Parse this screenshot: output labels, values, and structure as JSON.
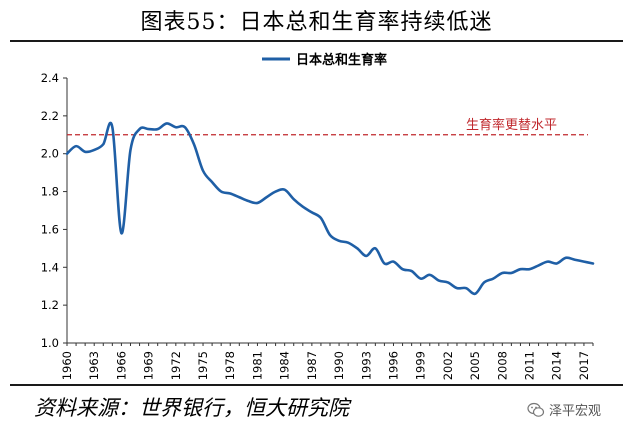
{
  "page": {
    "title": "图表55：日本总和生育率持续低迷",
    "source": "资料来源：世界银行，恒大研究院",
    "watermark": "泽平宏观",
    "watermark_icon": "wechat-icon"
  },
  "chart_data": {
    "type": "line",
    "title": "图表55：日本总和生育率持续低迷",
    "xlabel": "",
    "ylabel": "",
    "ylim": [
      1.0,
      2.4
    ],
    "yticks": [
      "1.0",
      "1.2",
      "1.4",
      "1.6",
      "1.8",
      "2.0",
      "2.2",
      "2.4"
    ],
    "xlim": [
      1960,
      2018
    ],
    "xticks": [
      "1960",
      "1963",
      "1966",
      "1969",
      "1972",
      "1975",
      "1978",
      "1981",
      "1984",
      "1987",
      "1990",
      "1993",
      "1996",
      "1999",
      "2002",
      "2005",
      "2008",
      "2011",
      "2014",
      "2017"
    ],
    "grid": false,
    "legend_position": "top-center",
    "series": [
      {
        "name": "日本总和生育率",
        "color": "#1f5fa6",
        "x": [
          1960,
          1961,
          1962,
          1963,
          1964,
          1965,
          1966,
          1967,
          1968,
          1969,
          1970,
          1971,
          1972,
          1973,
          1974,
          1975,
          1976,
          1977,
          1978,
          1979,
          1980,
          1981,
          1982,
          1983,
          1984,
          1985,
          1986,
          1987,
          1988,
          1989,
          1990,
          1991,
          1992,
          1993,
          1994,
          1995,
          1996,
          1997,
          1998,
          1999,
          2000,
          2001,
          2002,
          2003,
          2004,
          2005,
          2006,
          2007,
          2008,
          2009,
          2010,
          2011,
          2012,
          2013,
          2014,
          2015,
          2016,
          2017,
          2018
        ],
        "y": [
          2.0,
          2.04,
          2.01,
          2.02,
          2.05,
          2.14,
          1.58,
          2.02,
          2.13,
          2.13,
          2.13,
          2.16,
          2.14,
          2.14,
          2.05,
          1.91,
          1.85,
          1.8,
          1.79,
          1.77,
          1.75,
          1.74,
          1.77,
          1.8,
          1.81,
          1.76,
          1.72,
          1.69,
          1.66,
          1.57,
          1.54,
          1.53,
          1.5,
          1.46,
          1.5,
          1.42,
          1.43,
          1.39,
          1.38,
          1.34,
          1.36,
          1.33,
          1.32,
          1.29,
          1.29,
          1.26,
          1.32,
          1.34,
          1.37,
          1.37,
          1.39,
          1.39,
          1.41,
          1.43,
          1.42,
          1.45,
          1.44,
          1.43,
          1.42
        ]
      }
    ],
    "reference_lines": [
      {
        "label": "生育率更替水平",
        "y": 2.1,
        "color": "#c0282d",
        "style": "dashed"
      }
    ]
  }
}
